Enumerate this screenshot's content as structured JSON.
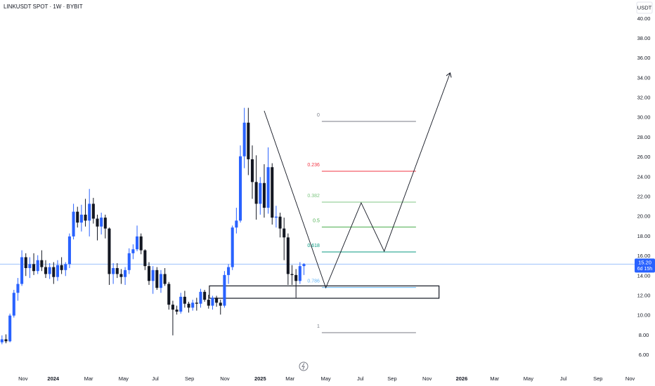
{
  "chart_data": {
    "type": "candlestick",
    "title": "LINKUSDT SPOT · 1W · BYBIT",
    "currency": "USDT",
    "up_color": "#2962ff",
    "down_color": "#131722",
    "x": [
      0,
      1,
      2,
      3,
      4,
      5,
      6,
      7,
      8,
      9,
      10,
      11,
      12,
      13,
      14,
      15,
      16,
      17,
      18,
      19,
      20,
      21,
      22,
      23,
      24,
      25,
      26,
      27,
      28,
      29,
      30,
      31,
      32,
      33,
      34,
      35,
      36,
      37,
      38,
      39,
      40,
      41,
      42,
      43,
      44,
      45,
      46,
      47,
      48,
      49,
      50,
      51,
      52,
      53,
      54,
      55,
      56,
      57,
      58,
      59,
      60,
      61,
      62,
      63,
      64,
      65,
      66,
      67,
      68,
      69,
      70,
      71,
      72,
      73,
      74,
      75,
      76
    ],
    "open": [
      7.3,
      7.6,
      7.4,
      10.0,
      12.3,
      13.2,
      15.9,
      14.8,
      15.2,
      14.5,
      15.6,
      14.9,
      14.2,
      14.9,
      13.9,
      15.1,
      14.6,
      15.2,
      18.0,
      20.5,
      19.4,
      20.2,
      19.6,
      21.3,
      19.8,
      19.0,
      19.9,
      18.8,
      14.2,
      14.8,
      14.2,
      13.9,
      14.6,
      16.3,
      16.7,
      18.0,
      16.6,
      15.0,
      13.5,
      14.6,
      12.8,
      14.2,
      13.2,
      11.1,
      10.6,
      10.4,
      11.9,
      11.2,
      10.8,
      11.3,
      11.2,
      12.4,
      11.6,
      11.0,
      11.8,
      11.3,
      11.0,
      14.1,
      14.9,
      18.9,
      19.6,
      26.1,
      29.5,
      25.8,
      23.5,
      21.3,
      23.4,
      20.9,
      25.0,
      19.9,
      20.0,
      18.8,
      17.9,
      14.2,
      14.1,
      13.5,
      15.0
    ],
    "high": [
      8.0,
      8.1,
      10.2,
      12.6,
      13.8,
      16.6,
      16.3,
      15.9,
      16.3,
      16.1,
      16.6,
      15.6,
      15.3,
      15.4,
      15.6,
      15.9,
      15.4,
      18.3,
      21.3,
      21.0,
      21.2,
      21.8,
      22.8,
      21.9,
      20.2,
      20.4,
      20.2,
      18.9,
      15.3,
      15.3,
      14.7,
      14.9,
      16.8,
      17.2,
      19.1,
      18.3,
      16.7,
      15.4,
      15.0,
      14.9,
      14.6,
      14.8,
      13.4,
      11.5,
      11.0,
      12.3,
      12.5,
      11.4,
      11.6,
      11.8,
      12.7,
      12.6,
      12.1,
      12.0,
      12.0,
      11.6,
      14.5,
      15.2,
      19.1,
      20.9,
      27.2,
      31.0,
      31.0,
      27.2,
      26.2,
      24.0,
      25.3,
      27.0,
      25.4,
      21.1,
      20.4,
      19.9,
      18.3,
      15.1,
      14.7,
      15.4,
      15.3
    ],
    "low": [
      7.1,
      7.2,
      7.3,
      9.8,
      11.5,
      13.0,
      14.0,
      13.8,
      14.1,
      14.2,
      14.5,
      13.8,
      13.7,
      13.2,
      13.5,
      14.2,
      14.0,
      14.8,
      17.7,
      18.9,
      18.5,
      19.0,
      18.0,
      19.3,
      17.6,
      18.2,
      17.8,
      13.1,
      13.2,
      13.8,
      13.2,
      13.1,
      14.2,
      15.7,
      16.5,
      16.2,
      14.6,
      13.1,
      12.2,
      12.6,
      12.3,
      13.0,
      10.6,
      8.0,
      10.1,
      10.2,
      10.8,
      10.3,
      10.5,
      10.5,
      10.8,
      11.4,
      10.7,
      10.6,
      10.9,
      10.1,
      10.8,
      13.2,
      14.6,
      18.3,
      19.4,
      24.9,
      24.2,
      21.8,
      19.7,
      20.2,
      19.9,
      20.3,
      19.2,
      18.9,
      17.9,
      15.6,
      13.1,
      13.1,
      11.8,
      13.2,
      14.1
    ],
    "close": [
      7.6,
      7.4,
      10.0,
      12.3,
      13.2,
      15.9,
      14.8,
      15.2,
      14.5,
      15.6,
      14.9,
      14.2,
      14.9,
      13.9,
      15.1,
      14.6,
      15.2,
      18.0,
      20.5,
      19.4,
      20.2,
      19.6,
      21.3,
      19.8,
      19.0,
      19.9,
      18.8,
      14.2,
      14.8,
      14.2,
      13.9,
      14.6,
      16.3,
      16.7,
      18.0,
      16.6,
      15.0,
      13.5,
      14.6,
      12.8,
      14.2,
      13.2,
      11.1,
      10.6,
      10.4,
      11.9,
      11.2,
      10.8,
      11.3,
      11.2,
      12.4,
      11.6,
      11.0,
      11.8,
      11.3,
      11.0,
      14.1,
      14.9,
      18.9,
      19.6,
      26.1,
      29.5,
      25.8,
      23.5,
      21.3,
      23.4,
      20.9,
      25.0,
      19.9,
      20.0,
      18.8,
      17.9,
      14.2,
      14.1,
      13.5,
      15.0,
      15.2
    ],
    "xlim": [
      -0.5,
      158.7
    ],
    "xticks": [
      {
        "value": 5.3,
        "label": "Nov"
      },
      {
        "value": 12.9,
        "label": "2024"
      },
      {
        "value": 21.8,
        "label": "Mar"
      },
      {
        "value": 30.6,
        "label": "May"
      },
      {
        "value": 38.6,
        "label": "Jul"
      },
      {
        "value": 47.2,
        "label": "Sep"
      },
      {
        "value": 56.1,
        "label": "Nov"
      },
      {
        "value": 65.0,
        "label": "2025"
      },
      {
        "value": 72.5,
        "label": "Mar"
      },
      {
        "value": 81.5,
        "label": "May"
      },
      {
        "value": 90.2,
        "label": "Jul"
      },
      {
        "value": 98.2,
        "label": "Sep"
      },
      {
        "value": 107.0,
        "label": "Nov"
      },
      {
        "value": 115.7,
        "label": "2026"
      },
      {
        "value": 124.0,
        "label": "Mar"
      },
      {
        "value": 132.5,
        "label": "May"
      },
      {
        "value": 141.3,
        "label": "Jul"
      },
      {
        "value": 150.0,
        "label": "Sep"
      },
      {
        "value": 158.1,
        "label": "Nov"
      }
    ],
    "ylim": [
      4.3,
      41.9
    ],
    "yticks": [
      {
        "value": 6,
        "label": "6.00"
      },
      {
        "value": 8,
        "label": "8.00"
      },
      {
        "value": 10,
        "label": "10.00"
      },
      {
        "value": 12,
        "label": "12.00"
      },
      {
        "value": 14,
        "label": "14.00"
      },
      {
        "value": 16,
        "label": "16.00"
      },
      {
        "value": 18,
        "label": "18.00"
      },
      {
        "value": 20,
        "label": "20.00"
      },
      {
        "value": 22,
        "label": "22.00"
      },
      {
        "value": 24,
        "label": "24.00"
      },
      {
        "value": 26,
        "label": "26.00"
      },
      {
        "value": 28,
        "label": "28.00"
      },
      {
        "value": 30,
        "label": "30.00"
      },
      {
        "value": 32,
        "label": "32.00"
      },
      {
        "value": 34,
        "label": "34.00"
      },
      {
        "value": 36,
        "label": "36.00"
      },
      {
        "value": 38,
        "label": "38.00"
      },
      {
        "value": 40,
        "label": "40.00"
      }
    ],
    "grid": false,
    "last_price": {
      "value": 15.2,
      "label": "15.20",
      "countdown": "6d 15h",
      "color": "#2962ff"
    },
    "fib": {
      "x": [
        80.5,
        104.2
      ],
      "levels": [
        {
          "ratio": 0,
          "price": 29.63,
          "color": "#787b86"
        },
        {
          "ratio": 0.236,
          "price": 24.59,
          "color": "#f23645"
        },
        {
          "ratio": 0.382,
          "price": 21.47,
          "color": "#81c784"
        },
        {
          "ratio": 0.5,
          "price": 18.95,
          "color": "#4caf50"
        },
        {
          "ratio": 0.618,
          "price": 16.43,
          "color": "#089981"
        },
        {
          "ratio": 0.786,
          "price": 12.84,
          "color": "#64b5f6"
        },
        {
          "ratio": 1,
          "price": 8.27,
          "color": "#787b86"
        }
      ]
    },
    "zone": {
      "top": 13.0,
      "bottom": 11.75,
      "x": [
        52.2,
        110.0
      ]
    },
    "projection": {
      "x": [
        66.0,
        81.5,
        90.4,
        96.2,
        112.8
      ],
      "values": [
        30.7,
        12.81,
        21.4,
        16.5,
        34.53
      ]
    }
  }
}
